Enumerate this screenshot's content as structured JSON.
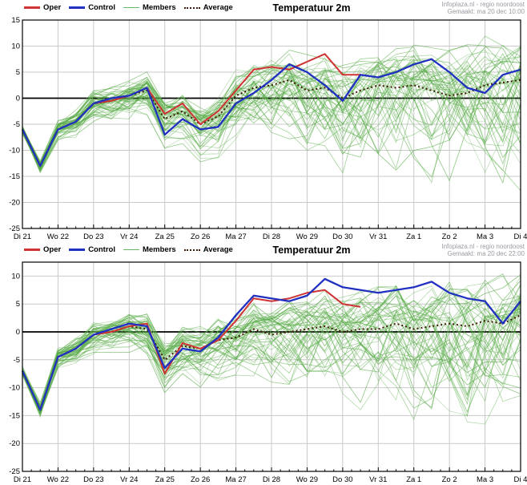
{
  "page": {
    "background": "#ffffff"
  },
  "chart_data": [
    {
      "type": "line",
      "title": "Temperatuur 2m",
      "credit": [
        "Infoplaza.nl - regio noordoost",
        "Gemaakt: ma 20 dec 10:00"
      ],
      "categories": [
        "Di 21",
        "Wo 22",
        "Do 23",
        "Vr 24",
        "Za 25",
        "Zo 26",
        "Ma 27",
        "Di 28",
        "Wo 29",
        "Do 30",
        "Vr 31",
        "Za 1",
        "Zo 2",
        "Ma 3",
        "Di 4"
      ],
      "x_step_days": 0.5,
      "x_max_days": 14,
      "ylim": [
        -25,
        15
      ],
      "yticks": [
        15,
        10,
        5,
        0,
        -5,
        -10,
        -15,
        -20,
        -25
      ],
      "grid": true,
      "legend_position": "top",
      "legend": [
        {
          "label": "Oper",
          "color": "#cf3333",
          "style": "solid"
        },
        {
          "label": "Control",
          "color": "#2030c0",
          "style": "solid"
        },
        {
          "label": "Members",
          "color": "#63b663",
          "style": "thin"
        },
        {
          "label": "Average",
          "color": "#401c08",
          "style": "dotted"
        }
      ],
      "series": [
        {
          "name": "Oper",
          "color": "#cf3333",
          "width": 2,
          "dash": "",
          "values": [
            -6,
            -13,
            -6,
            -4.5,
            -1,
            -0.5,
            0.5,
            2,
            -3,
            -1,
            -5,
            -2.5,
            1.5,
            5.5,
            6,
            5.5,
            7,
            8.5,
            4.5,
            4.5
          ]
        },
        {
          "name": "Control",
          "color": "#2030c0",
          "width": 2.3,
          "dash": "",
          "values": [
            -6,
            -13,
            -6,
            -4.5,
            -1,
            0,
            0.5,
            2,
            -7,
            -4,
            -6,
            -5.5,
            -1,
            1,
            3.5,
            6.5,
            5,
            2.5,
            -0.5,
            4.5,
            4,
            5,
            6.5,
            7.5,
            5,
            2,
            1,
            4.5,
            5.5
          ]
        },
        {
          "name": "Average",
          "color": "#401c08",
          "width": 2,
          "dash": "2,3",
          "values": [
            -6,
            -13,
            -6,
            -4.5,
            -1,
            -0.5,
            0.5,
            1.5,
            -4,
            -2.5,
            -5,
            -3.5,
            0.5,
            2,
            2.5,
            3.5,
            1.5,
            2,
            0,
            1.5,
            2.5,
            2,
            2.5,
            1.5,
            0.5,
            1,
            2.5,
            3,
            3.5
          ]
        }
      ],
      "members": {
        "name": "Members",
        "count": 50,
        "color": "#55aa44",
        "seed": 7,
        "spread_days": [
          0,
          1,
          2,
          4,
          6,
          8,
          10,
          14
        ],
        "spread_up": [
          0.7,
          1.2,
          1.8,
          2.5,
          3.5,
          5,
          6,
          7
        ],
        "spread_down": [
          0.7,
          1.5,
          2.5,
          4,
          6,
          9,
          12,
          15
        ]
      }
    },
    {
      "type": "line",
      "title": "Temperatuur 2m",
      "credit": [
        "Infoplaza.nl - regio noordoost",
        "Gemaakt: ma 20 dec 22:00"
      ],
      "categories": [
        "Di 21",
        "Wo 22",
        "Do 23",
        "Vr 24",
        "Za 25",
        "Zo 26",
        "Ma 27",
        "Di 28",
        "Wo 29",
        "Do 30",
        "Vr 31",
        "Za 1",
        "Zo 2",
        "Ma 3",
        "Di 4"
      ],
      "x_step_days": 0.5,
      "x_max_days": 14,
      "ylim": [
        -25,
        12.5
      ],
      "yticks": [
        10,
        5,
        0,
        -5,
        -10,
        -15,
        -20,
        -25
      ],
      "grid": true,
      "legend_position": "top",
      "legend": [
        {
          "label": "Oper",
          "color": "#cf3333",
          "style": "solid"
        },
        {
          "label": "Control",
          "color": "#2030c0",
          "style": "solid"
        },
        {
          "label": "Members",
          "color": "#63b663",
          "style": "thin"
        },
        {
          "label": "Average",
          "color": "#401c08",
          "style": "dotted"
        }
      ],
      "series": [
        {
          "name": "Oper",
          "color": "#cf3333",
          "width": 2,
          "dash": "",
          "values": [
            -7,
            -14,
            -4.5,
            -3,
            -0.5,
            0,
            1,
            1.5,
            -7.5,
            -2,
            -3,
            -1.5,
            2,
            6,
            5.5,
            6,
            7,
            7.5,
            5,
            4.5
          ]
        },
        {
          "name": "Control",
          "color": "#2030c0",
          "width": 2.3,
          "dash": "",
          "values": [
            -7,
            -14,
            -4.5,
            -3,
            -0.5,
            0.5,
            1.5,
            1,
            -6.5,
            -3,
            -3.5,
            -1,
            3,
            6.5,
            6,
            5.5,
            6.5,
            9.5,
            8,
            7.5,
            7,
            7.5,
            8,
            9,
            7,
            6,
            5.5,
            1.5,
            5.5
          ]
        },
        {
          "name": "Average",
          "color": "#401c08",
          "width": 2,
          "dash": "2,3",
          "values": [
            -7,
            -14,
            -4.5,
            -3,
            -0.5,
            0,
            1,
            0.5,
            -5,
            -2.5,
            -3,
            -1.5,
            -1,
            0.5,
            -0.5,
            0,
            0.5,
            1,
            0,
            0.5,
            0.5,
            1.5,
            0.5,
            1,
            1.5,
            1,
            2,
            1.5,
            3
          ]
        }
      ],
      "members": {
        "name": "Members",
        "count": 50,
        "color": "#55aa44",
        "seed": 11,
        "spread_days": [
          0,
          1,
          2,
          4,
          6,
          8,
          10,
          14
        ],
        "spread_up": [
          0.7,
          1.2,
          1.8,
          2.5,
          3.5,
          4.5,
          5.5,
          6.5
        ],
        "spread_down": [
          0.7,
          1.5,
          2.5,
          4,
          5.5,
          8,
          11,
          14
        ]
      }
    }
  ]
}
